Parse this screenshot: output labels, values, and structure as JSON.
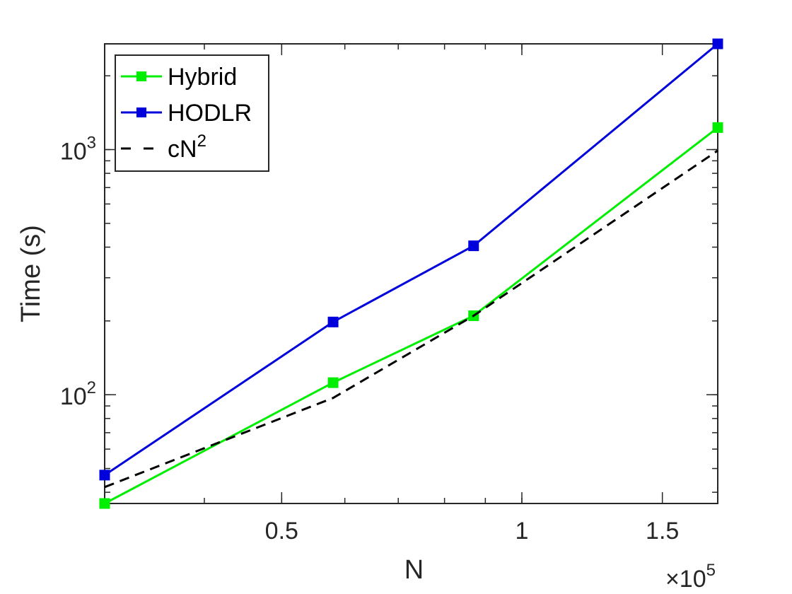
{
  "chart_data": {
    "type": "line",
    "xlabel": "N",
    "ylabel": "Time (s)",
    "x_scale": "log",
    "y_scale": "log",
    "x_multiplier_label": "×10",
    "x_multiplier_exp": "5",
    "xlim": [
      0.3,
      1.76
    ],
    "ylim": [
      36,
      2700
    ],
    "xticks": [
      {
        "value": 0.5,
        "label": "0.5"
      },
      {
        "value": 1.0,
        "label": "1"
      },
      {
        "value": 1.5,
        "label": "1.5"
      }
    ],
    "yticks": [
      {
        "value": 100,
        "base": "10",
        "exp": "2"
      },
      {
        "value": 1000,
        "base": "10",
        "exp": "3"
      }
    ],
    "series": [
      {
        "name": "Hybrid",
        "color": "#00ee00",
        "dash": "none",
        "marker": "square",
        "x": [
          0.3,
          0.58,
          0.87,
          1.76
        ],
        "y": [
          36,
          112,
          210,
          1230
        ]
      },
      {
        "name": "HODLR",
        "color": "#0000dd",
        "dash": "none",
        "marker": "square",
        "x": [
          0.3,
          0.58,
          0.87,
          1.76
        ],
        "y": [
          47,
          198,
          405,
          2700
        ]
      },
      {
        "name": "cN",
        "name_sup": "2",
        "color": "#000000",
        "dash": "dashed",
        "marker": "none",
        "x": [
          0.3,
          0.58,
          0.87,
          1.76
        ],
        "y": [
          42,
          97,
          210,
          990
        ]
      }
    ],
    "legend_position": "top-left",
    "grid": false
  }
}
